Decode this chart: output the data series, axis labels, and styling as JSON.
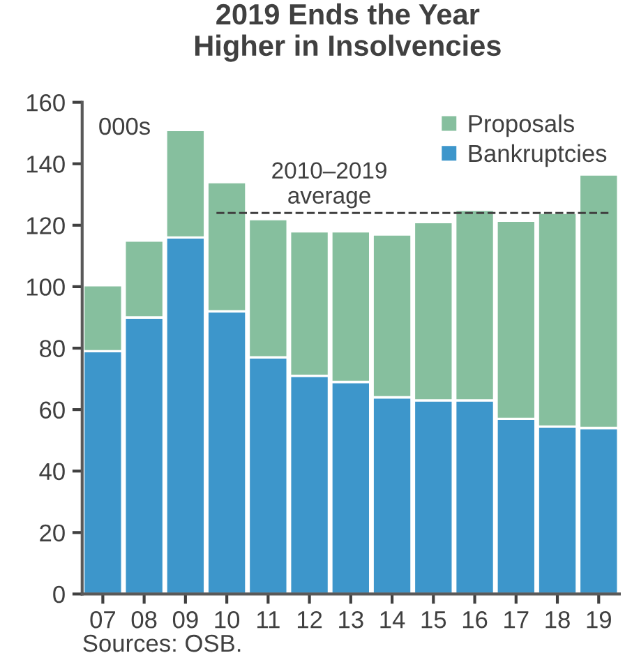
{
  "chart_data": {
    "type": "bar",
    "title": "2019 Ends the Year\nHigher in Insolvencies",
    "stacked": true,
    "categories": [
      "07",
      "08",
      "09",
      "10",
      "11",
      "12",
      "13",
      "14",
      "15",
      "16",
      "17",
      "18",
      "19"
    ],
    "series": [
      {
        "name": "Bankruptcies",
        "color": "#3d96cb",
        "values": [
          79,
          90,
          116,
          92,
          77,
          71,
          69,
          64,
          63,
          63,
          57,
          54.5,
          54
        ]
      },
      {
        "name": "Proposals",
        "color": "#86bf9e",
        "values": [
          21.5,
          25,
          35,
          42,
          45,
          47,
          49,
          53,
          58,
          62,
          64.5,
          69.5,
          82.5
        ]
      }
    ],
    "ylim": [
      0,
      160
    ],
    "yticks": [
      0,
      20,
      40,
      60,
      80,
      100,
      120,
      140,
      160
    ],
    "grid": false,
    "legend": "top right",
    "ref_lines": [
      {
        "axis": "y",
        "value": 124,
        "label": "2010–2019\naverage",
        "color": "#404040",
        "line_style": "dashed"
      }
    ],
    "annotations": [
      "000s",
      "Sources: OSB."
    ]
  }
}
